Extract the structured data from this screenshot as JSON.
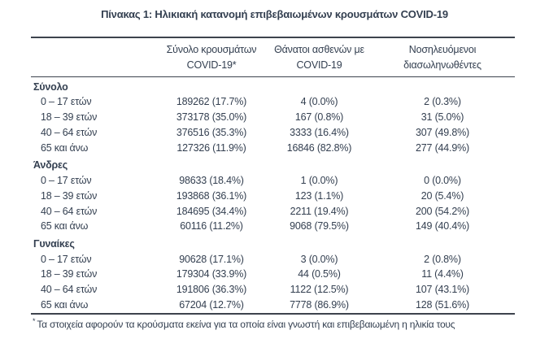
{
  "title": "Πίνακας 1: Ηλικιακή κατανομή επιβεβαιωμένων κρουσμάτων COVID-19",
  "colors": {
    "text": "#333f50",
    "border": "#3d434d",
    "background": "#ffffff"
  },
  "table": {
    "columns": [
      {
        "line1": "Σύνολο κρουσμάτων",
        "line2": "COVID-19*"
      },
      {
        "line1": "Θάνατοι ασθενών με",
        "line2": "COVID-19"
      },
      {
        "line1": "Νοσηλευόμενοι",
        "line2": "διασωληνωθέντες"
      }
    ],
    "sections": [
      {
        "label": "Σύνολο",
        "rows": [
          {
            "age": "0 – 17 ετών",
            "cases": "189262 (17.7%)",
            "deaths": "4 (0.0%)",
            "intubated": "2 (0.3%)"
          },
          {
            "age": "18 – 39 ετών",
            "cases": "373178 (35.0%)",
            "deaths": "167 (0.8%)",
            "intubated": "31 (5.0%)"
          },
          {
            "age": "40 – 64 ετών",
            "cases": "376516 (35.3%)",
            "deaths": "3333 (16.4%)",
            "intubated": "307 (49.8%)"
          },
          {
            "age": "65 και άνω",
            "cases": "127326 (11.9%)",
            "deaths": "16846 (82.8%)",
            "intubated": "277 (44.9%)"
          }
        ]
      },
      {
        "label": "Άνδρες",
        "rows": [
          {
            "age": "0 – 17 ετών",
            "cases": "98633 (18.4%)",
            "deaths": "1 (0.0%)",
            "intubated": "0 (0.0%)"
          },
          {
            "age": "18 – 39 ετών",
            "cases": "193868 (36.1%)",
            "deaths": "123 (1.1%)",
            "intubated": "20 (5.4%)"
          },
          {
            "age": "40 – 64 ετών",
            "cases": "184695 (34.4%)",
            "deaths": "2211 (19.4%)",
            "intubated": "200 (54.2%)"
          },
          {
            "age": "65 και άνω",
            "cases": "60116 (11.2%)",
            "deaths": "9068 (79.5%)",
            "intubated": "149 (40.4%)"
          }
        ]
      },
      {
        "label": "Γυναίκες",
        "rows": [
          {
            "age": "0 – 17 ετών",
            "cases": "90628 (17.1%)",
            "deaths": "3 (0.0%)",
            "intubated": "2 (0.8%)"
          },
          {
            "age": "18 – 39 ετών",
            "cases": "179304 (33.9%)",
            "deaths": "44 (0.5%)",
            "intubated": "11 (4.4%)"
          },
          {
            "age": "40 – 64 ετών",
            "cases": "191806 (36.3%)",
            "deaths": "1122 (12.5%)",
            "intubated": "107 (43.1%)"
          },
          {
            "age": "65 και άνω",
            "cases": "67204 (12.7%)",
            "deaths": "7778 (86.9%)",
            "intubated": "128 (51.6%)"
          }
        ]
      }
    ]
  },
  "footnote": {
    "marker": "*",
    "text": "Τα στοιχεία αφορούν τα κρούσματα εκείνα για τα οποία είναι γνωστή και επιβεβαιωμένη η ηλικία τους"
  }
}
